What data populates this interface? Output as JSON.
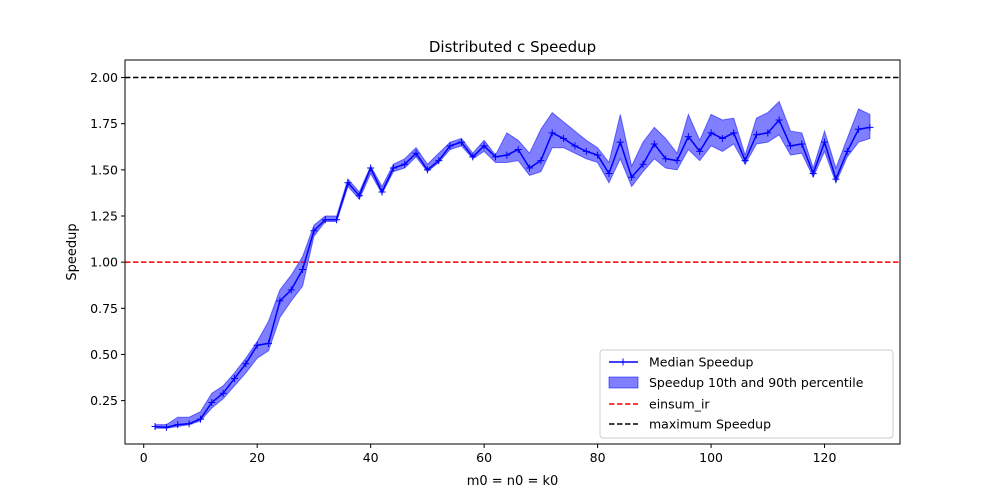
{
  "chart_data": {
    "type": "line",
    "title": "Distributed c Speedup",
    "xlabel": "m0 = n0 = k0",
    "ylabel": "Speedup",
    "xlim": [
      -3.3,
      133.3
    ],
    "ylim": [
      0.015,
      2.095
    ],
    "xticks": [
      0,
      20,
      40,
      60,
      80,
      100,
      120
    ],
    "xtick_labels": [
      "0",
      "20",
      "40",
      "60",
      "80",
      "100",
      "120"
    ],
    "yticks": [
      0.25,
      0.5,
      0.75,
      1.0,
      1.25,
      1.5,
      1.75,
      2.0
    ],
    "ytick_labels": [
      "0.25",
      "0.50",
      "0.75",
      "1.00",
      "1.25",
      "1.50",
      "1.75",
      "2.00"
    ],
    "grid": false,
    "legend_position": "bottom-right",
    "x": [
      2,
      4,
      6,
      8,
      10,
      12,
      14,
      16,
      18,
      20,
      22,
      24,
      26,
      28,
      30,
      32,
      34,
      36,
      38,
      40,
      42,
      44,
      46,
      48,
      50,
      52,
      54,
      56,
      58,
      60,
      62,
      64,
      66,
      68,
      70,
      72,
      74,
      76,
      78,
      80,
      82,
      84,
      86,
      88,
      90,
      92,
      94,
      96,
      98,
      100,
      102,
      104,
      106,
      108,
      110,
      112,
      114,
      116,
      118,
      120,
      122,
      124,
      126,
      128
    ],
    "series": [
      {
        "name": "Median Speedup",
        "kind": "line",
        "color": "#0000ff",
        "marker": "+",
        "values": [
          0.11,
          0.105,
          0.12,
          0.125,
          0.15,
          0.24,
          0.29,
          0.37,
          0.45,
          0.55,
          0.56,
          0.79,
          0.85,
          0.96,
          1.17,
          1.23,
          1.23,
          1.43,
          1.36,
          1.51,
          1.38,
          1.51,
          1.53,
          1.59,
          1.5,
          1.55,
          1.63,
          1.65,
          1.57,
          1.63,
          1.57,
          1.58,
          1.61,
          1.51,
          1.55,
          1.7,
          1.67,
          1.63,
          1.6,
          1.58,
          1.48,
          1.65,
          1.46,
          1.53,
          1.64,
          1.56,
          1.55,
          1.68,
          1.6,
          1.7,
          1.67,
          1.7,
          1.55,
          1.69,
          1.7,
          1.77,
          1.63,
          1.64,
          1.48,
          1.65,
          1.45,
          1.6,
          1.72,
          1.73
        ]
      },
      {
        "name": "Speedup 10th and 90th percentile",
        "kind": "band",
        "color": "#0000ff",
        "lower": [
          0.1,
          0.1,
          0.11,
          0.12,
          0.14,
          0.21,
          0.26,
          0.33,
          0.4,
          0.48,
          0.52,
          0.7,
          0.79,
          0.87,
          1.14,
          1.22,
          1.22,
          1.41,
          1.34,
          1.48,
          1.37,
          1.49,
          1.51,
          1.57,
          1.49,
          1.54,
          1.61,
          1.63,
          1.56,
          1.6,
          1.54,
          1.54,
          1.55,
          1.47,
          1.49,
          1.62,
          1.62,
          1.59,
          1.56,
          1.54,
          1.43,
          1.56,
          1.41,
          1.49,
          1.56,
          1.51,
          1.5,
          1.61,
          1.55,
          1.63,
          1.6,
          1.64,
          1.53,
          1.64,
          1.65,
          1.69,
          1.58,
          1.59,
          1.46,
          1.6,
          1.43,
          1.57,
          1.65,
          1.67
        ],
        "upper": [
          0.12,
          0.12,
          0.16,
          0.16,
          0.19,
          0.29,
          0.33,
          0.4,
          0.48,
          0.57,
          0.68,
          0.85,
          0.93,
          1.03,
          1.2,
          1.25,
          1.25,
          1.45,
          1.38,
          1.52,
          1.41,
          1.53,
          1.56,
          1.62,
          1.53,
          1.59,
          1.65,
          1.67,
          1.59,
          1.66,
          1.58,
          1.7,
          1.66,
          1.59,
          1.72,
          1.81,
          1.76,
          1.71,
          1.66,
          1.62,
          1.54,
          1.8,
          1.52,
          1.65,
          1.73,
          1.67,
          1.59,
          1.8,
          1.66,
          1.8,
          1.77,
          1.78,
          1.58,
          1.78,
          1.81,
          1.87,
          1.71,
          1.7,
          1.51,
          1.71,
          1.51,
          1.67,
          1.83,
          1.8
        ]
      },
      {
        "name": "einsum_ir",
        "kind": "hline",
        "color": "#ff0000",
        "value": 1.0
      },
      {
        "name": "maximum Speedup",
        "kind": "hline",
        "color": "#000000",
        "value": 2.0
      }
    ]
  }
}
